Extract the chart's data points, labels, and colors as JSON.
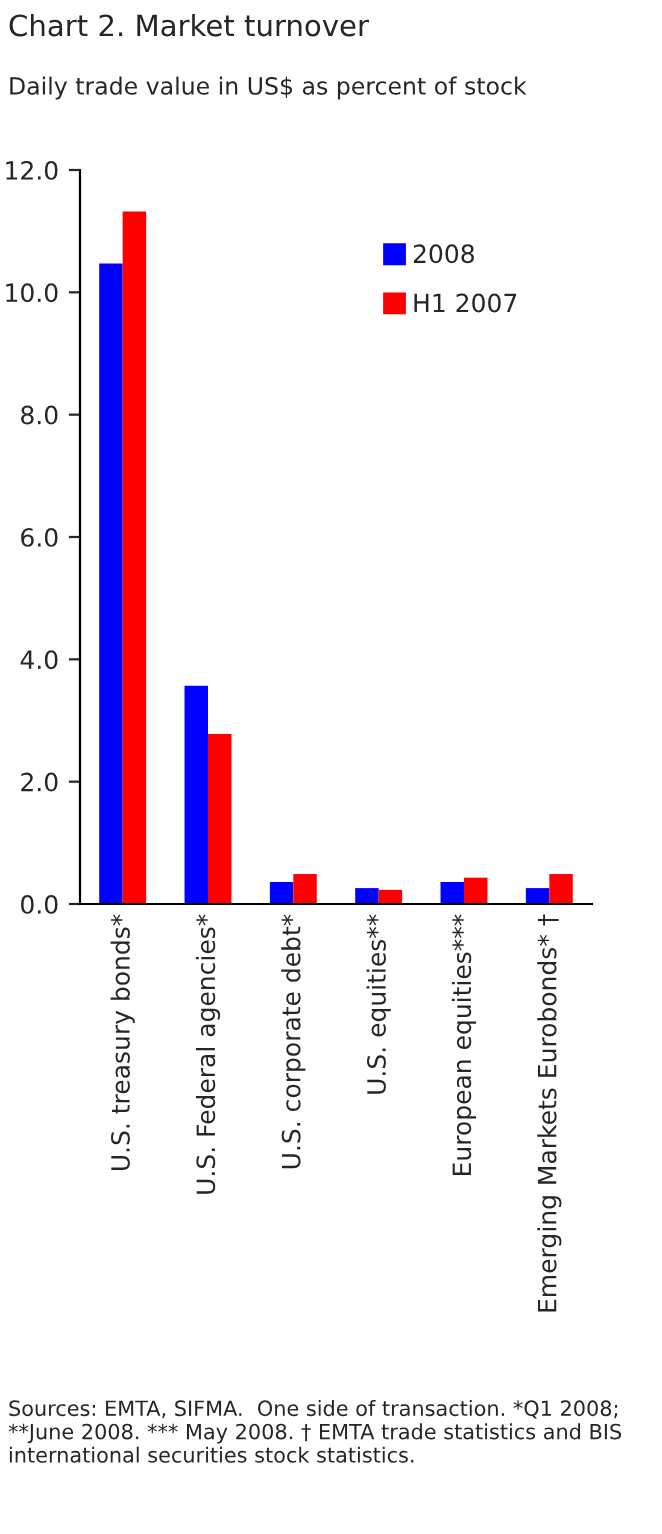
{
  "chart_data": {
    "type": "bar",
    "title": "Chart 2. Market turnover",
    "subtitle": "Daily trade value in US$ as percent of stock",
    "categories": [
      "U.S. treasury bonds*",
      "U.S. Federal agencies*",
      "U.S. corporate debt*",
      "U.S. equities**",
      "European equities***",
      "Emerging Markets Eurobonds* †"
    ],
    "series": [
      {
        "name": "2008",
        "color": "#0000ff",
        "values": [
          10.47,
          3.57,
          0.36,
          0.26,
          0.36,
          0.26
        ]
      },
      {
        "name": "H1 2007",
        "color": "#ff0000",
        "values": [
          11.32,
          2.78,
          0.49,
          0.23,
          0.43,
          0.49
        ]
      }
    ],
    "ylim": [
      0,
      12
    ],
    "yticks": [
      {
        "value": 0,
        "label": "0.0"
      },
      {
        "value": 2,
        "label": "2.0"
      },
      {
        "value": 4,
        "label": "4.0"
      },
      {
        "value": 6,
        "label": "6.0"
      },
      {
        "value": 8,
        "label": "8.0"
      },
      {
        "value": 10,
        "label": "10.0"
      },
      {
        "value": 12,
        "label": "12.0"
      }
    ],
    "grid": false,
    "legend": "top right",
    "annotations": [
      "Sources: EMTA, SIFMA.  One side of transaction. *Q1 2008; **June 2008. *** May 2008. † EMTA trade statistics and BIS international securities stock statistics."
    ]
  }
}
